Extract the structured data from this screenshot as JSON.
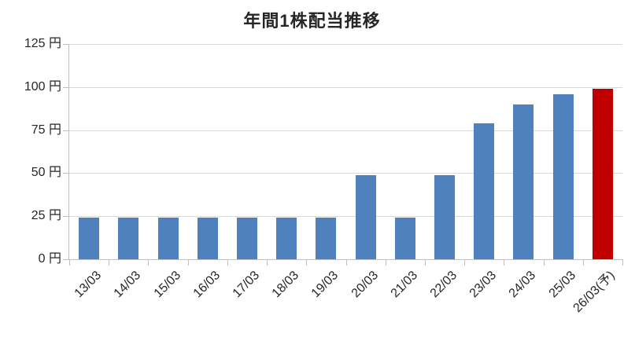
{
  "chart_data": {
    "type": "bar",
    "title": "年間1株配当推移",
    "unit": "円",
    "categories": [
      "13/03",
      "14/03",
      "15/03",
      "16/03",
      "17/03",
      "18/03",
      "19/03",
      "20/03",
      "21/03",
      "22/03",
      "23/03",
      "24/03",
      "25/03",
      "26/03(予)"
    ],
    "values": [
      24,
      24,
      24,
      24,
      24,
      24,
      24,
      49,
      24,
      49,
      79,
      90,
      96,
      99
    ],
    "forecast_index": 13,
    "y_ticks": [
      0,
      25,
      50,
      75,
      100,
      125
    ],
    "y_tick_labels": [
      "0 円",
      "25 円",
      "50 円",
      "75 円",
      "100 円",
      "125 円"
    ],
    "ylim": [
      0,
      125
    ],
    "grid": true,
    "legend": "none",
    "xlabel": "",
    "ylabel": "",
    "colors": {
      "bar": "#4F81BD",
      "forecast_bar": "#C00000",
      "gridline": "#D9D9D9",
      "axis": "#BFBFBF",
      "text": "#262626"
    }
  }
}
